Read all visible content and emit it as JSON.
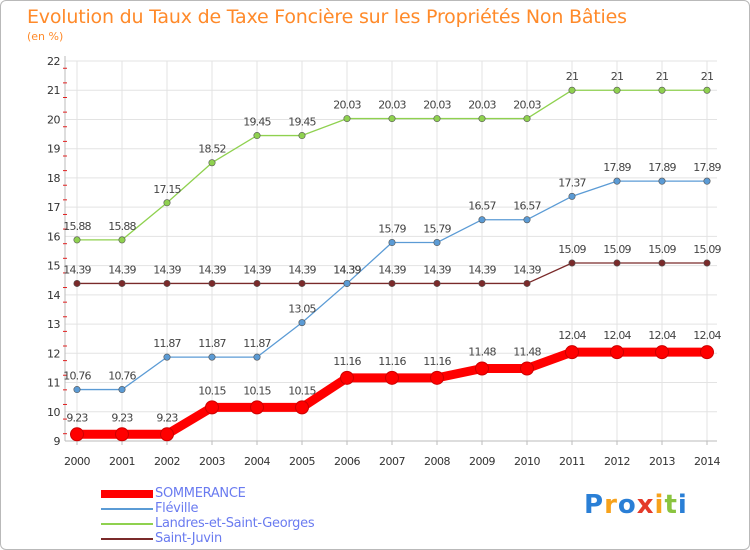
{
  "header": {
    "title": "Evolution du Taux de Taxe Foncière sur les Propriétés Non Bâties",
    "subtitle": "(en %)"
  },
  "brand": {
    "logo_letters": [
      "P",
      "r",
      "o",
      "x",
      "i",
      "t",
      "i"
    ],
    "logo_colors": [
      "#2a7fd6",
      "#f7a21b",
      "#2a7fd6",
      "#e43a2a",
      "#f7a21b",
      "#8ac43f",
      "#2a7fd6"
    ]
  },
  "chart_data": {
    "type": "line",
    "x": [
      "2000",
      "2001",
      "2002",
      "2003",
      "2004",
      "2005",
      "2006",
      "2007",
      "2008",
      "2009",
      "2010",
      "2011",
      "2012",
      "2013",
      "2014"
    ],
    "ylim": [
      9,
      22
    ],
    "yticks": [
      "9",
      "10",
      "11",
      "12",
      "13",
      "14",
      "15",
      "16",
      "17",
      "18",
      "19",
      "20",
      "21",
      "22"
    ],
    "grid": true,
    "legend_position": "bottom-left",
    "series": [
      {
        "name": "SOMMERANCE",
        "color": "#ff0000",
        "values": [
          9.23,
          9.23,
          9.23,
          10.15,
          10.15,
          10.15,
          11.16,
          11.16,
          11.16,
          11.48,
          11.48,
          12.04,
          12.04,
          12.04,
          12.04
        ],
        "labels": [
          "9.23",
          "9.23",
          "9.23",
          "10.15",
          "10.15",
          "10.15",
          "11.16",
          "11.16",
          "11.16",
          "11.48",
          "11.48",
          "12.04",
          "12.04",
          "12.04",
          "12.04"
        ]
      },
      {
        "name": "Fléville",
        "color": "#5b9bd5",
        "values": [
          10.76,
          10.76,
          11.87,
          11.87,
          11.87,
          13.05,
          14.39,
          15.79,
          15.79,
          16.57,
          16.57,
          17.37,
          17.89,
          17.89,
          17.89
        ],
        "labels": [
          "10.76",
          "10.76",
          "11.87",
          "11.87",
          "11.87",
          "13.05",
          "14.39",
          "15.79",
          "15.79",
          "16.57",
          "16.57",
          "17.37",
          "17.89",
          "17.89",
          "17.89"
        ]
      },
      {
        "name": "Landres-et-Saint-Georges",
        "color": "#8fd14f",
        "values": [
          15.88,
          15.88,
          17.15,
          18.52,
          19.45,
          19.45,
          20.03,
          20.03,
          20.03,
          20.03,
          20.03,
          21,
          21,
          21,
          21
        ],
        "labels": [
          "15.88",
          "15.88",
          "17.15",
          "18.52",
          "19.45",
          "19.45",
          "20.03",
          "20.03",
          "20.03",
          "20.03",
          "20.03",
          "21",
          "21",
          "21",
          "21"
        ]
      },
      {
        "name": "Saint-Juvin",
        "color": "#7a2a2a",
        "values": [
          14.39,
          14.39,
          14.39,
          14.39,
          14.39,
          14.39,
          14.39,
          14.39,
          14.39,
          14.39,
          14.39,
          15.09,
          15.09,
          15.09,
          15.09
        ],
        "labels": [
          "14.39",
          "14.39",
          "14.39",
          "14.39",
          "14.39",
          "14.39",
          "14.39",
          "14.39",
          "14.39",
          "14.39",
          "14.39",
          "15.09",
          "15.09",
          "15.09",
          "15.09"
        ]
      }
    ]
  }
}
